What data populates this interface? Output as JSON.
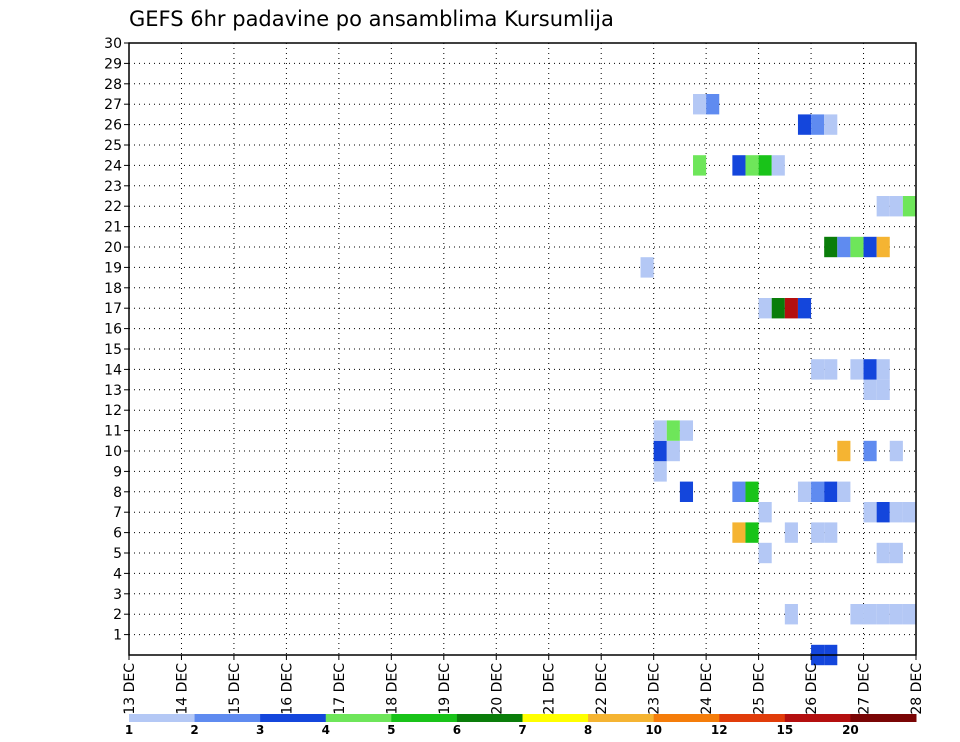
{
  "chart_data": {
    "type": "heatmap",
    "title": "GEFS 6hr padavine po ansamblima Kursumlija",
    "xlabel": "",
    "ylabel": "",
    "x_ticks": [
      "13 DEC",
      "14 DEC",
      "15 DEC",
      "16 DEC",
      "17 DEC",
      "18 DEC",
      "19 DEC",
      "20 DEC",
      "21 DEC",
      "22 DEC",
      "23 DEC",
      "24 DEC",
      "25 DEC",
      "26 DEC",
      "27 DEC",
      "28 DEC"
    ],
    "xlim": [
      "13 DEC 00Z",
      "28 DEC 00Z"
    ],
    "y_ticks": [
      1,
      2,
      3,
      4,
      5,
      6,
      7,
      8,
      9,
      10,
      11,
      12,
      13,
      14,
      15,
      16,
      17,
      18,
      19,
      20,
      21,
      22,
      23,
      24,
      25,
      26,
      27,
      28,
      29,
      30
    ],
    "ylim": [
      0,
      30
    ],
    "x_step_hours": 6,
    "grid": true,
    "colorbar": {
      "levels": [
        "1",
        "2",
        "3",
        "4",
        "5",
        "6",
        "7",
        "8",
        "10",
        "12",
        "15",
        "20"
      ],
      "colors": [
        "#b4c8f5",
        "#5f8bf0",
        "#1446dc",
        "#6ee65a",
        "#19c319",
        "#0a7d0a",
        "#ffff00",
        "#f5b432",
        "#f57d0a",
        "#e13c0a",
        "#b40f0f",
        "#7a0505"
      ]
    },
    "cells": [
      {
        "member": 0,
        "times": [
          {
            "time": "26 DEC 00Z",
            "c": 2
          },
          {
            "time": "26 DEC 06Z",
            "c": 2
          }
        ]
      },
      {
        "member": 2,
        "times": [
          {
            "time": "25 DEC 12Z",
            "c": 0
          },
          {
            "time": "26 DEC 18Z",
            "c": 0
          },
          {
            "time": "27 DEC 00Z",
            "c": 0
          },
          {
            "time": "27 DEC 06Z",
            "c": 0
          },
          {
            "time": "27 DEC 12Z",
            "c": 0
          },
          {
            "time": "27 DEC 18Z",
            "c": 0
          }
        ]
      },
      {
        "member": 5,
        "times": [
          {
            "time": "25 DEC 00Z",
            "c": 0
          },
          {
            "time": "27 DEC 06Z",
            "c": 0
          },
          {
            "time": "27 DEC 12Z",
            "c": 0
          }
        ]
      },
      {
        "member": 6,
        "times": [
          {
            "time": "24 DEC 12Z",
            "c": 7
          },
          {
            "time": "24 DEC 18Z",
            "c": 4
          },
          {
            "time": "25 DEC 12Z",
            "c": 0
          },
          {
            "time": "26 DEC 00Z",
            "c": 0
          },
          {
            "time": "26 DEC 06Z",
            "c": 0
          }
        ]
      },
      {
        "member": 7,
        "times": [
          {
            "time": "25 DEC 00Z",
            "c": 0
          },
          {
            "time": "27 DEC 00Z",
            "c": 0
          },
          {
            "time": "27 DEC 06Z",
            "c": 2
          },
          {
            "time": "27 DEC 12Z",
            "c": 0
          },
          {
            "time": "27 DEC 18Z",
            "c": 0
          }
        ]
      },
      {
        "member": 8,
        "times": [
          {
            "time": "23 DEC 12Z",
            "c": 2
          },
          {
            "time": "24 DEC 12Z",
            "c": 1
          },
          {
            "time": "24 DEC 18Z",
            "c": 4
          },
          {
            "time": "25 DEC 18Z",
            "c": 0
          },
          {
            "time": "26 DEC 00Z",
            "c": 1
          },
          {
            "time": "26 DEC 06Z",
            "c": 2
          },
          {
            "time": "26 DEC 12Z",
            "c": 0
          }
        ]
      },
      {
        "member": 9,
        "times": [
          {
            "time": "23 DEC 00Z",
            "c": 0
          }
        ]
      },
      {
        "member": 10,
        "times": [
          {
            "time": "23 DEC 00Z",
            "c": 2
          },
          {
            "time": "23 DEC 06Z",
            "c": 0
          },
          {
            "time": "26 DEC 12Z",
            "c": 7
          },
          {
            "time": "27 DEC 00Z",
            "c": 1
          },
          {
            "time": "27 DEC 12Z",
            "c": 0
          }
        ]
      },
      {
        "member": 11,
        "times": [
          {
            "time": "23 DEC 00Z",
            "c": 0
          },
          {
            "time": "23 DEC 06Z",
            "c": 3
          },
          {
            "time": "23 DEC 12Z",
            "c": 0
          }
        ]
      },
      {
        "member": 13,
        "times": [
          {
            "time": "27 DEC 00Z",
            "c": 0
          },
          {
            "time": "27 DEC 06Z",
            "c": 0
          }
        ]
      },
      {
        "member": 14,
        "times": [
          {
            "time": "26 DEC 00Z",
            "c": 0
          },
          {
            "time": "26 DEC 06Z",
            "c": 0
          },
          {
            "time": "26 DEC 18Z",
            "c": 0
          },
          {
            "time": "27 DEC 00Z",
            "c": 2
          },
          {
            "time": "27 DEC 06Z",
            "c": 0
          }
        ]
      },
      {
        "member": 17,
        "times": [
          {
            "time": "25 DEC 00Z",
            "c": 0
          },
          {
            "time": "25 DEC 06Z",
            "c": 5
          },
          {
            "time": "25 DEC 12Z",
            "c": 10
          },
          {
            "time": "25 DEC 18Z",
            "c": 2
          }
        ]
      },
      {
        "member": 19,
        "times": [
          {
            "time": "22 DEC 18Z",
            "c": 0
          }
        ]
      },
      {
        "member": 20,
        "times": [
          {
            "time": "26 DEC 06Z",
            "c": 5
          },
          {
            "time": "26 DEC 12Z",
            "c": 1
          },
          {
            "time": "26 DEC 18Z",
            "c": 3
          },
          {
            "time": "27 DEC 00Z",
            "c": 2
          },
          {
            "time": "27 DEC 06Z",
            "c": 7
          }
        ]
      },
      {
        "member": 22,
        "times": [
          {
            "time": "27 DEC 06Z",
            "c": 0
          },
          {
            "time": "27 DEC 12Z",
            "c": 0
          },
          {
            "time": "27 DEC 18Z",
            "c": 3
          }
        ]
      },
      {
        "member": 24,
        "times": [
          {
            "time": "23 DEC 18Z",
            "c": 3
          },
          {
            "time": "24 DEC 12Z",
            "c": 2
          },
          {
            "time": "24 DEC 18Z",
            "c": 3
          },
          {
            "time": "25 DEC 00Z",
            "c": 4
          },
          {
            "time": "25 DEC 06Z",
            "c": 0
          }
        ]
      },
      {
        "member": 26,
        "times": [
          {
            "time": "25 DEC 18Z",
            "c": 2
          },
          {
            "time": "26 DEC 00Z",
            "c": 1
          },
          {
            "time": "26 DEC 06Z",
            "c": 0
          }
        ]
      },
      {
        "member": 27,
        "times": [
          {
            "time": "23 DEC 18Z",
            "c": 0
          },
          {
            "time": "24 DEC 00Z",
            "c": 1
          }
        ]
      }
    ]
  }
}
